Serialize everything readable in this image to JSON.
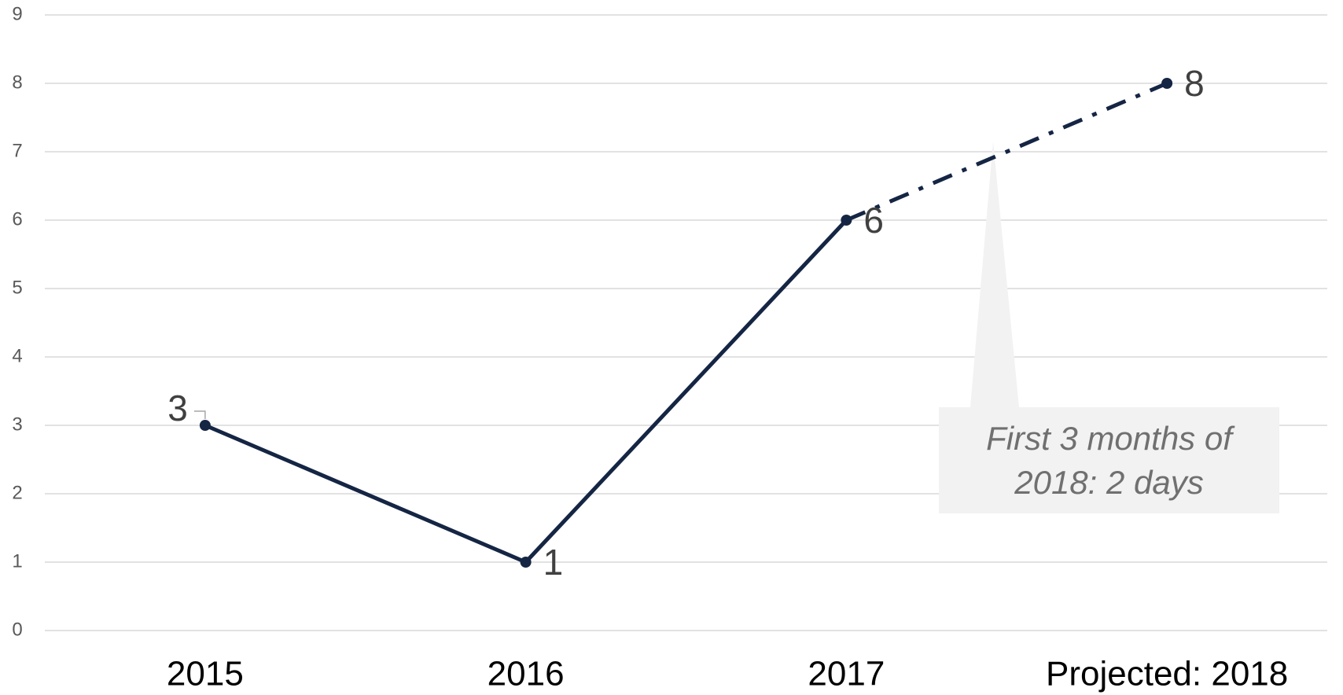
{
  "chart_data": {
    "type": "line",
    "categories": [
      "2015",
      "2016",
      "2017",
      "Projected: 2018"
    ],
    "values": [
      3,
      1,
      6,
      8
    ],
    "color": "#152544",
    "dashed_last_segment": true,
    "ylim": [
      0,
      9
    ],
    "yticks": [
      0,
      1,
      2,
      3,
      4,
      5,
      6,
      7,
      8,
      9
    ],
    "grid": true,
    "annotation": "First 3 months of 2018: 2 days"
  }
}
